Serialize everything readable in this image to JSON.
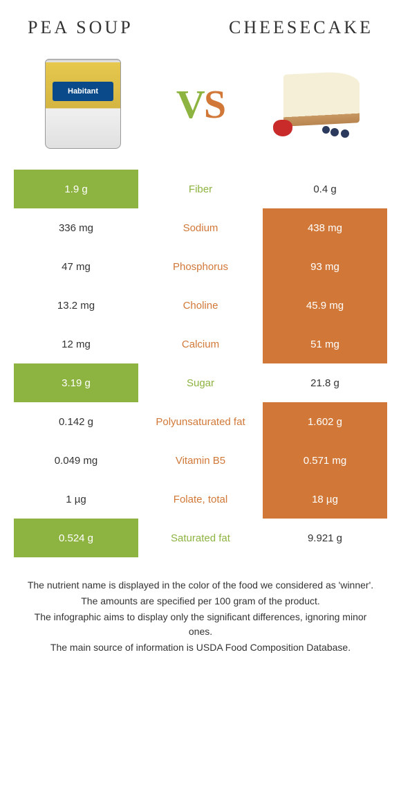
{
  "header": {
    "left_title": "Pea soup",
    "right_title": "Cheesecake"
  },
  "vs": {
    "v": "V",
    "s": "S"
  },
  "colors": {
    "green": "#8db340",
    "orange": "#d17838",
    "white": "#ffffff",
    "text_dark": "#333333"
  },
  "can_label": "Habitant",
  "rows": [
    {
      "nutrient": "Fiber",
      "left_val": "1.9 g",
      "right_val": "0.4 g",
      "left_bg": "green",
      "right_bg": "white",
      "mid_color": "green"
    },
    {
      "nutrient": "Sodium",
      "left_val": "336 mg",
      "right_val": "438 mg",
      "left_bg": "white",
      "right_bg": "orange",
      "mid_color": "orange"
    },
    {
      "nutrient": "Phosphorus",
      "left_val": "47 mg",
      "right_val": "93 mg",
      "left_bg": "white",
      "right_bg": "orange",
      "mid_color": "orange"
    },
    {
      "nutrient": "Choline",
      "left_val": "13.2 mg",
      "right_val": "45.9 mg",
      "left_bg": "white",
      "right_bg": "orange",
      "mid_color": "orange"
    },
    {
      "nutrient": "Calcium",
      "left_val": "12 mg",
      "right_val": "51 mg",
      "left_bg": "white",
      "right_bg": "orange",
      "mid_color": "orange"
    },
    {
      "nutrient": "Sugar",
      "left_val": "3.19 g",
      "right_val": "21.8 g",
      "left_bg": "green",
      "right_bg": "white",
      "mid_color": "green"
    },
    {
      "nutrient": "Polyunsaturated fat",
      "left_val": "0.142 g",
      "right_val": "1.602 g",
      "left_bg": "white",
      "right_bg": "orange",
      "mid_color": "orange"
    },
    {
      "nutrient": "Vitamin B5",
      "left_val": "0.049 mg",
      "right_val": "0.571 mg",
      "left_bg": "white",
      "right_bg": "orange",
      "mid_color": "orange"
    },
    {
      "nutrient": "Folate, total",
      "left_val": "1 µg",
      "right_val": "18 µg",
      "left_bg": "white",
      "right_bg": "orange",
      "mid_color": "orange"
    },
    {
      "nutrient": "Saturated fat",
      "left_val": "0.524 g",
      "right_val": "9.921 g",
      "left_bg": "green",
      "right_bg": "white",
      "mid_color": "green"
    }
  ],
  "footer": {
    "line1": "The nutrient name is displayed in the color of the food we considered as 'winner'.",
    "line2": "The amounts are specified per 100 gram of the product.",
    "line3": "The infographic aims to display only the significant differences, ignoring minor ones.",
    "line4": "The main source of information is USDA Food Composition Database."
  }
}
